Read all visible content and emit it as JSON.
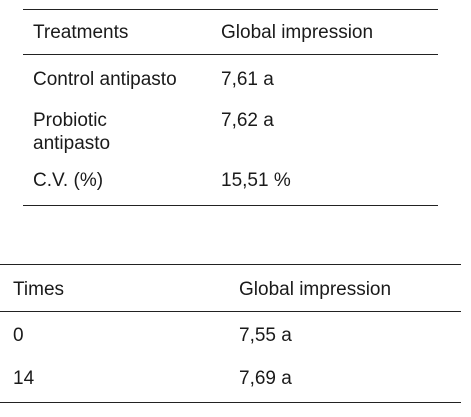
{
  "table1": {
    "headers": [
      "Treatments",
      "Global impression"
    ],
    "rows": [
      [
        "Control antipasto",
        "7,61 a"
      ],
      [
        "Probiotic antipasto",
        "7,62 a"
      ],
      [
        "C.V. (%)",
        "15,51 %"
      ]
    ]
  },
  "table2": {
    "headers": [
      "Times",
      "Global impression"
    ],
    "rows": [
      [
        "0",
        "7,55 a"
      ],
      [
        "14",
        "7,69 a"
      ]
    ]
  }
}
